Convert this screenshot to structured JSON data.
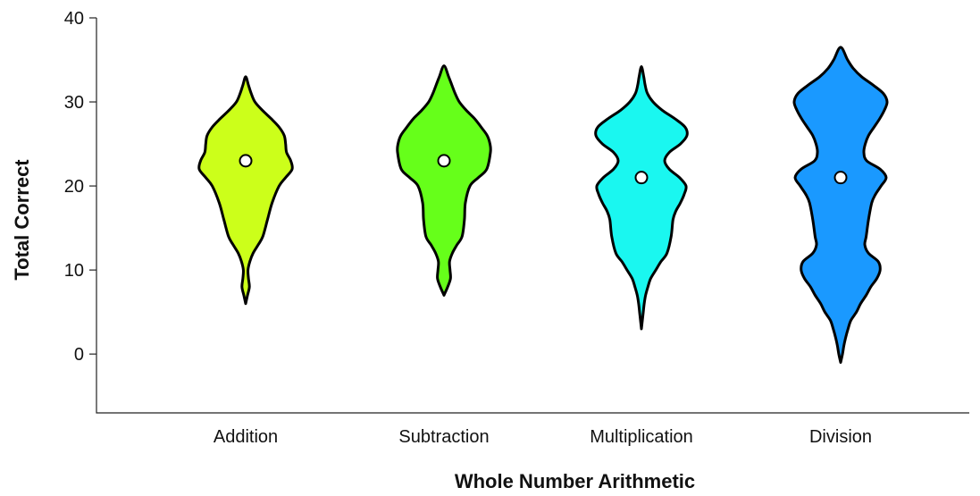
{
  "chart_data": {
    "type": "violin",
    "title": "",
    "xlabel": "Whole Number Arithmetic",
    "ylabel": "Total Correct",
    "ylim": [
      -7,
      40
    ],
    "yticks": [
      0,
      10,
      20,
      30,
      40
    ],
    "grid": false,
    "legend": "none",
    "categories": [
      "Addition",
      "Subtraction",
      "Multiplication",
      "Division"
    ],
    "series": [
      {
        "category": "Addition",
        "color": "#ccff1a",
        "median": 23,
        "profile": [
          [
            6,
            0
          ],
          [
            7,
            0.04
          ],
          [
            8,
            0.08
          ],
          [
            9,
            0.06
          ],
          [
            10,
            0.05
          ],
          [
            11,
            0.09
          ],
          [
            12,
            0.16
          ],
          [
            13,
            0.27
          ],
          [
            14,
            0.37
          ],
          [
            16,
            0.47
          ],
          [
            18,
            0.57
          ],
          [
            20,
            0.72
          ],
          [
            21,
            0.86
          ],
          [
            22,
            1.0
          ],
          [
            23,
            0.97
          ],
          [
            24,
            0.88
          ],
          [
            25,
            0.86
          ],
          [
            26,
            0.83
          ],
          [
            27,
            0.72
          ],
          [
            28,
            0.55
          ],
          [
            29,
            0.36
          ],
          [
            30,
            0.2
          ],
          [
            31,
            0.12
          ],
          [
            32,
            0.06
          ],
          [
            33,
            0
          ]
        ]
      },
      {
        "category": "Subtraction",
        "color": "#66ff1a",
        "median": 23,
        "profile": [
          [
            7,
            0
          ],
          [
            8,
            0.08
          ],
          [
            9,
            0.14
          ],
          [
            10,
            0.13
          ],
          [
            11,
            0.12
          ],
          [
            12,
            0.18
          ],
          [
            13,
            0.28
          ],
          [
            14,
            0.39
          ],
          [
            16,
            0.44
          ],
          [
            18,
            0.46
          ],
          [
            20,
            0.56
          ],
          [
            21,
            0.74
          ],
          [
            22,
            0.92
          ],
          [
            24,
            1.0
          ],
          [
            25,
            0.99
          ],
          [
            26,
            0.93
          ],
          [
            27,
            0.8
          ],
          [
            28,
            0.66
          ],
          [
            29,
            0.48
          ],
          [
            30,
            0.33
          ],
          [
            31,
            0.24
          ],
          [
            32,
            0.17
          ],
          [
            33,
            0.1
          ],
          [
            34.3,
            0
          ]
        ]
      },
      {
        "category": "Multiplication",
        "color": "#1af7f0",
        "median": 21,
        "profile": [
          [
            3,
            0
          ],
          [
            4,
            0.02
          ],
          [
            5,
            0.04
          ],
          [
            6,
            0.06
          ],
          [
            7,
            0.09
          ],
          [
            8,
            0.14
          ],
          [
            9,
            0.2
          ],
          [
            10,
            0.31
          ],
          [
            11,
            0.42
          ],
          [
            12,
            0.55
          ],
          [
            14,
            0.64
          ],
          [
            16,
            0.68
          ],
          [
            17,
            0.74
          ],
          [
            18,
            0.84
          ],
          [
            19,
            0.92
          ],
          [
            20,
            0.96
          ],
          [
            21,
            0.82
          ],
          [
            22,
            0.6
          ],
          [
            23,
            0.5
          ],
          [
            24,
            0.6
          ],
          [
            25,
            0.84
          ],
          [
            26,
            0.98
          ],
          [
            27,
            0.94
          ],
          [
            28,
            0.72
          ],
          [
            29,
            0.45
          ],
          [
            30,
            0.25
          ],
          [
            31,
            0.13
          ],
          [
            32,
            0.08
          ],
          [
            33,
            0.05
          ],
          [
            34.2,
            0
          ]
        ]
      },
      {
        "category": "Division",
        "color": "#1a99ff",
        "median": 21,
        "profile": [
          [
            -1,
            0
          ],
          [
            0,
            0.04
          ],
          [
            1,
            0.07
          ],
          [
            2,
            0.11
          ],
          [
            3,
            0.16
          ],
          [
            4,
            0.22
          ],
          [
            5,
            0.34
          ],
          [
            6,
            0.43
          ],
          [
            7,
            0.55
          ],
          [
            8,
            0.65
          ],
          [
            9,
            0.78
          ],
          [
            10,
            0.85
          ],
          [
            11,
            0.81
          ],
          [
            12,
            0.6
          ],
          [
            13,
            0.52
          ],
          [
            14,
            0.55
          ],
          [
            16,
            0.6
          ],
          [
            18,
            0.67
          ],
          [
            19,
            0.75
          ],
          [
            20,
            0.87
          ],
          [
            21,
            0.98
          ],
          [
            22,
            0.85
          ],
          [
            23,
            0.56
          ],
          [
            24,
            0.5
          ],
          [
            25,
            0.53
          ],
          [
            26,
            0.6
          ],
          [
            27,
            0.72
          ],
          [
            28,
            0.84
          ],
          [
            29,
            0.94
          ],
          [
            30,
            1.0
          ],
          [
            31,
            0.92
          ],
          [
            32,
            0.7
          ],
          [
            33,
            0.45
          ],
          [
            34,
            0.27
          ],
          [
            35,
            0.15
          ],
          [
            36.5,
            0
          ]
        ]
      }
    ]
  }
}
